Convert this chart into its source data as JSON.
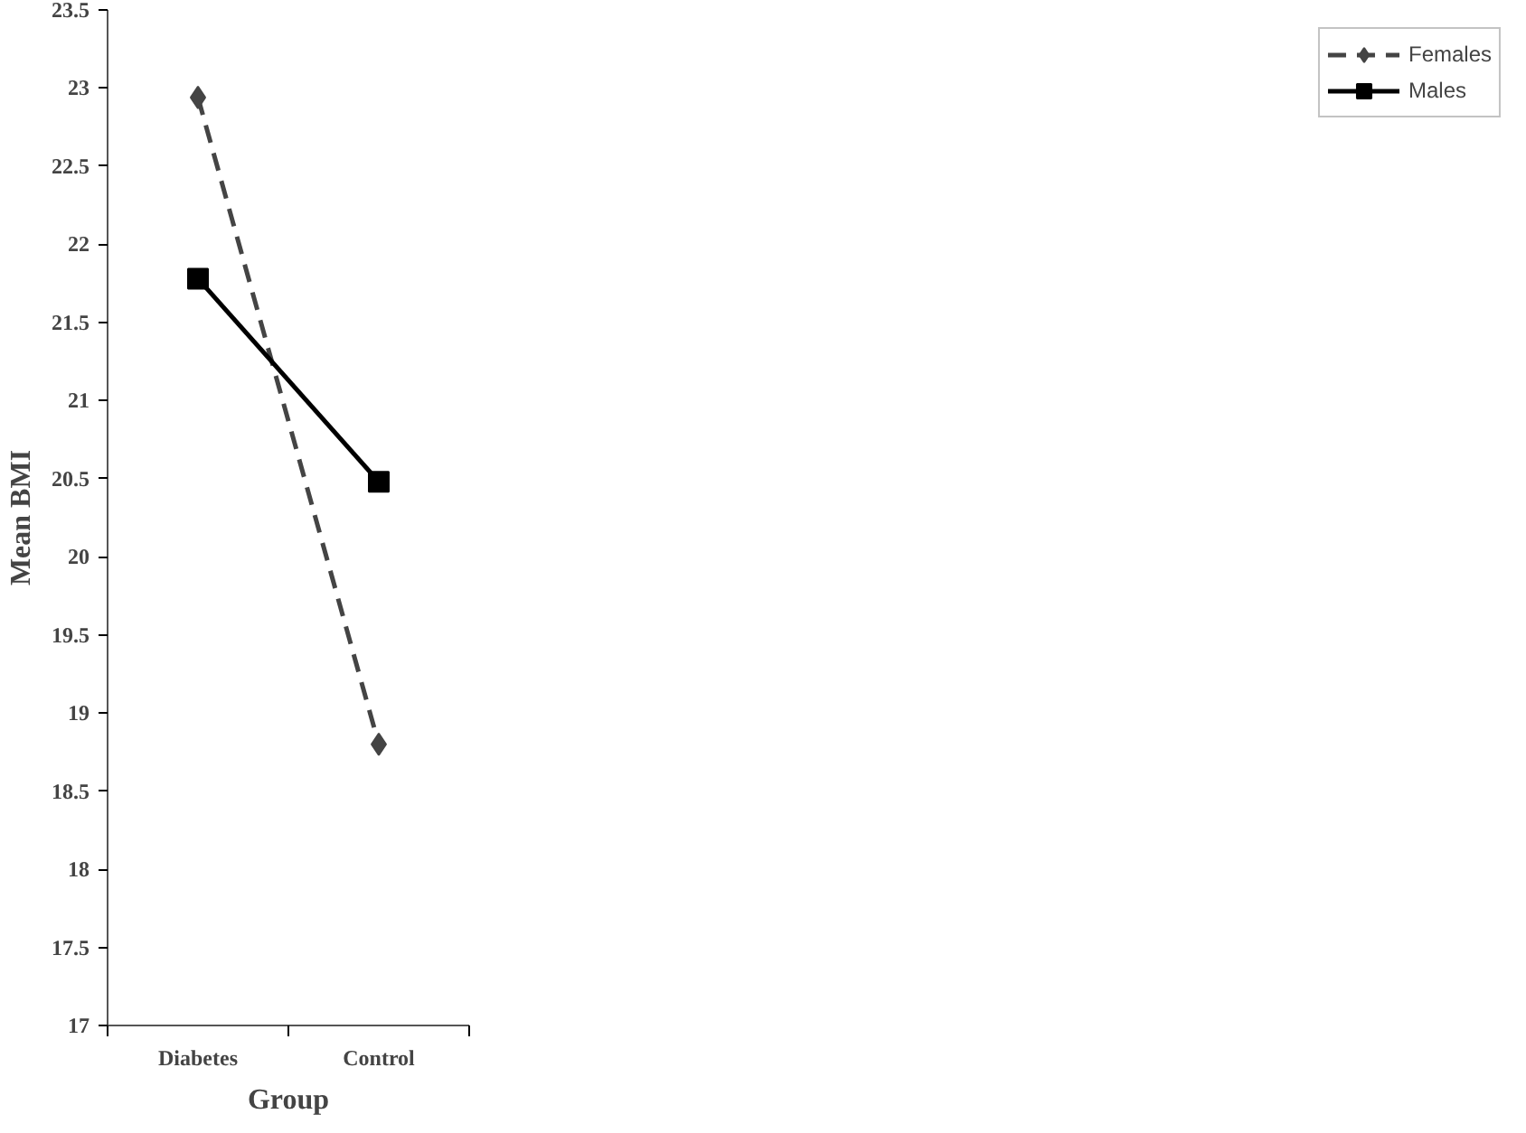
{
  "chart_data": {
    "type": "line",
    "xlabel": "Group",
    "ylabel": "Mean BMI",
    "categories": [
      "Diabetes",
      "Control"
    ],
    "series": [
      {
        "name": "Females",
        "color": "#444444",
        "values": [
          22.94,
          18.8
        ],
        "marker": "diamond",
        "line_style": "dashed"
      },
      {
        "name": "Males",
        "color": "#000000",
        "values": [
          21.78,
          20.48
        ],
        "marker": "square",
        "line_style": "solid"
      }
    ],
    "ylim": [
      17,
      23.5
    ],
    "yticks": [
      17,
      17.5,
      18,
      18.5,
      19,
      19.5,
      20,
      20.5,
      21,
      21.5,
      22,
      22.5,
      23,
      23.5
    ],
    "grid": false,
    "legend": "right"
  }
}
